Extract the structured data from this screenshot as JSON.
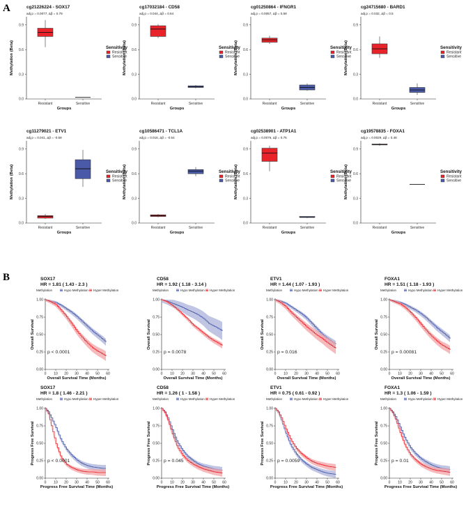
{
  "panel_labels": {
    "a": "A",
    "b": "B"
  },
  "colors": {
    "resistant": "#e8232a",
    "sensitive": "#4a5aa8",
    "hyper": "#e8232a",
    "hypo": "#4a5aa8",
    "hyper_band": "#f4a3a6",
    "hypo_band": "#a9b1d8"
  },
  "boxplot_common": {
    "ylabel": "Methylation (Beta)",
    "xlabel": "Groups",
    "yticks": [
      "0.0",
      "0.3",
      "0.6",
      "0.9"
    ],
    "categories": [
      "Resistant",
      "Sensitive"
    ],
    "legend_title": "Sensitivity",
    "legend_items": [
      "Resistant",
      "Sensitive"
    ]
  },
  "km_common": {
    "legend_prefix": "Methylation",
    "legend_items": [
      "Hypo Methylation",
      "Hyper Methylation"
    ],
    "yticks": [
      "0.00",
      "0.25",
      "0.50",
      "0.75",
      "1.00"
    ],
    "xticks": [
      "0",
      "10",
      "20",
      "30",
      "40",
      "50",
      "60"
    ],
    "os_ylabel": "Overall Survival",
    "os_xlabel": "Overall Survival Time (Months)",
    "pfs_ylabel": "Progress Free Survival",
    "pfs_xlabel": "Progress Free Survival Time (Months)"
  },
  "chart_data": [
    {
      "type": "box",
      "title": "cg21226224 - SOX17",
      "stat": "adj.p = 0.0077, Δβ = 0.79",
      "ylim": [
        0,
        1
      ],
      "boxes": [
        {
          "group": "Resistant",
          "min": 0.63,
          "q1": 0.76,
          "median": 0.81,
          "q3": 0.86,
          "max": 0.96
        },
        {
          "group": "Sensitive",
          "min": 0.02,
          "q1": 0.02,
          "median": 0.02,
          "q3": 0.02,
          "max": 0.02
        }
      ]
    },
    {
      "type": "box",
      "title": "cg17032184 - CD58",
      "stat": "adj.p = 0.044, Δβ = 0.64",
      "ylim": [
        0,
        1
      ],
      "boxes": [
        {
          "group": "Resistant",
          "min": 0.74,
          "q1": 0.76,
          "median": 0.85,
          "q3": 0.89,
          "max": 0.91
        },
        {
          "group": "Sensitive",
          "min": 0.13,
          "q1": 0.14,
          "median": 0.15,
          "q3": 0.16,
          "max": 0.17
        }
      ]
    },
    {
      "type": "box",
      "title": "cg01250864 - IFNGR1",
      "stat": "adj.p = 0.0057, Δβ = 0.59",
      "ylim": [
        0,
        1
      ],
      "boxes": [
        {
          "group": "Resistant",
          "min": 0.67,
          "q1": 0.69,
          "median": 0.72,
          "q3": 0.74,
          "max": 0.77
        },
        {
          "group": "Sensitive",
          "min": 0.1,
          "q1": 0.11,
          "median": 0.14,
          "q3": 0.17,
          "max": 0.19
        }
      ]
    },
    {
      "type": "box",
      "title": "cg24715680 - BARD1",
      "stat": "adj.p = 0.032, Δβ = 0.5",
      "ylim": [
        0,
        1
      ],
      "boxes": [
        {
          "group": "Resistant",
          "min": 0.5,
          "q1": 0.55,
          "median": 0.61,
          "q3": 0.67,
          "max": 0.76
        },
        {
          "group": "Sensitive",
          "min": 0.05,
          "q1": 0.08,
          "median": 0.11,
          "q3": 0.14,
          "max": 0.19
        }
      ]
    },
    {
      "type": "box",
      "title": "cg11279021 - ETV1",
      "stat": "adj.p = 0.041, Δβ = -0.58",
      "ylim": [
        0,
        1
      ],
      "boxes": [
        {
          "group": "Resistant",
          "min": 0.05,
          "q1": 0.06,
          "median": 0.08,
          "q3": 0.09,
          "max": 0.11
        },
        {
          "group": "Sensitive",
          "min": 0.44,
          "q1": 0.54,
          "median": 0.66,
          "q3": 0.77,
          "max": 0.89
        }
      ]
    },
    {
      "type": "box",
      "title": "cg10586471 - TCL1A",
      "stat": "adj.p = 0.016, Δβ = -0.54",
      "ylim": [
        0,
        1
      ],
      "boxes": [
        {
          "group": "Resistant",
          "min": 0.07,
          "q1": 0.08,
          "median": 0.09,
          "q3": 0.1,
          "max": 0.11
        },
        {
          "group": "Sensitive",
          "min": 0.57,
          "q1": 0.6,
          "median": 0.63,
          "q3": 0.65,
          "max": 0.68
        }
      ]
    },
    {
      "type": "box",
      "title": "cg02538901 - ATP1A1",
      "stat": "adj.p = 0.0076, Δβ = 0.75",
      "ylim": [
        0,
        1
      ],
      "boxes": [
        {
          "group": "Resistant",
          "min": 0.63,
          "q1": 0.75,
          "median": 0.85,
          "q3": 0.91,
          "max": 0.94
        },
        {
          "group": "Sensitive",
          "min": 0.06,
          "q1": 0.07,
          "median": 0.07,
          "q3": 0.08,
          "max": 0.08
        }
      ]
    },
    {
      "type": "box",
      "title": "cg19578835 - FOXA1",
      "stat": "adj.p = 0.0029, Δβ = 0.48",
      "ylim": [
        0,
        1
      ],
      "boxes": [
        {
          "group": "Resistant",
          "min": 0.94,
          "q1": 0.95,
          "median": 0.955,
          "q3": 0.96,
          "max": 0.97
        },
        {
          "group": "Sensitive",
          "min": 0.47,
          "q1": 0.47,
          "median": 0.47,
          "q3": 0.47,
          "max": 0.47
        }
      ]
    },
    {
      "type": "km",
      "gene": "SOX17",
      "hr": "HR = 1.81 ( 1.43 - 2.3 )",
      "pvalue": "p < 0.0001",
      "endpoint": "os",
      "xlim": [
        0,
        60
      ],
      "ylim": [
        0,
        1
      ],
      "hypo": {
        "x": [
          0,
          5,
          10,
          15,
          20,
          25,
          30,
          35,
          40,
          45,
          50,
          55,
          58
        ],
        "y": [
          1,
          0.98,
          0.96,
          0.92,
          0.87,
          0.82,
          0.76,
          0.69,
          0.62,
          0.55,
          0.49,
          0.43,
          0.39
        ],
        "band": 0.05
      },
      "hyper": {
        "x": [
          0,
          5,
          10,
          15,
          20,
          25,
          30,
          35,
          40,
          45,
          50,
          55,
          58
        ],
        "y": [
          1,
          0.97,
          0.93,
          0.85,
          0.76,
          0.66,
          0.55,
          0.46,
          0.38,
          0.31,
          0.26,
          0.22,
          0.19
        ],
        "band": 0.07
      }
    },
    {
      "type": "km",
      "gene": "CD58",
      "hr": "HR = 1.92 ( 1.18 - 3.14 )",
      "pvalue": "p = 0.0078",
      "endpoint": "os",
      "xlim": [
        0,
        60
      ],
      "ylim": [
        0,
        1
      ],
      "hypo": {
        "x": [
          0,
          5,
          10,
          15,
          20,
          25,
          30,
          35,
          40,
          45,
          50,
          55,
          58
        ],
        "y": [
          1,
          0.98,
          0.95,
          0.92,
          0.89,
          0.85,
          0.82,
          0.78,
          0.73,
          0.66,
          0.62,
          0.58,
          0.55
        ],
        "band": 0.13
      },
      "hyper": {
        "x": [
          0,
          5,
          10,
          15,
          20,
          25,
          30,
          35,
          40,
          45,
          50,
          55,
          58
        ],
        "y": [
          1,
          0.97,
          0.92,
          0.86,
          0.79,
          0.72,
          0.64,
          0.58,
          0.52,
          0.46,
          0.41,
          0.37,
          0.34
        ],
        "band": 0.04
      }
    },
    {
      "type": "km",
      "gene": "ETV1",
      "hr": "HR = 1.44 ( 1.07 - 1.93 )",
      "pvalue": "p = 0.016",
      "endpoint": "os",
      "xlim": [
        0,
        60
      ],
      "ylim": [
        0,
        1
      ],
      "hypo": {
        "x": [
          0,
          5,
          10,
          15,
          20,
          25,
          30,
          35,
          40,
          45,
          50,
          55,
          58
        ],
        "y": [
          1,
          0.98,
          0.95,
          0.9,
          0.85,
          0.8,
          0.74,
          0.66,
          0.58,
          0.5,
          0.44,
          0.39,
          0.36
        ],
        "band": 0.05
      },
      "hyper": {
        "x": [
          0,
          5,
          10,
          15,
          20,
          25,
          30,
          35,
          40,
          45,
          50,
          55,
          58
        ],
        "y": [
          1,
          0.96,
          0.9,
          0.82,
          0.75,
          0.68,
          0.61,
          0.55,
          0.49,
          0.44,
          0.38,
          0.33,
          0.3
        ],
        "band": 0.08
      }
    },
    {
      "type": "km",
      "gene": "FOXA1",
      "hr": "HR = 1.51 ( 1.18 - 1.93 )",
      "pvalue": "p = 0.00081",
      "endpoint": "os",
      "xlim": [
        0,
        60
      ],
      "ylim": [
        0,
        1
      ],
      "hypo": {
        "x": [
          0,
          5,
          10,
          15,
          20,
          25,
          30,
          35,
          40,
          45,
          50,
          55,
          58
        ],
        "y": [
          1,
          0.98,
          0.96,
          0.93,
          0.89,
          0.85,
          0.8,
          0.74,
          0.67,
          0.6,
          0.54,
          0.48,
          0.44
        ],
        "band": 0.05
      },
      "hyper": {
        "x": [
          0,
          5,
          10,
          15,
          20,
          25,
          30,
          35,
          40,
          45,
          50,
          55,
          58
        ],
        "y": [
          1,
          0.97,
          0.94,
          0.89,
          0.82,
          0.74,
          0.65,
          0.56,
          0.48,
          0.41,
          0.35,
          0.31,
          0.28
        ],
        "band": 0.06
      }
    },
    {
      "type": "km",
      "gene": "SOX17",
      "hr": "HR = 1.8 ( 1.46 - 2.21 )",
      "pvalue": "p < 0.0001",
      "endpoint": "pfs",
      "xlim": [
        0,
        60
      ],
      "ylim": [
        0,
        1
      ],
      "hypo": {
        "x": [
          0,
          3,
          6,
          10,
          15,
          20,
          25,
          30,
          35,
          40,
          45,
          50,
          55,
          58
        ],
        "y": [
          1,
          0.95,
          0.86,
          0.73,
          0.55,
          0.42,
          0.33,
          0.26,
          0.21,
          0.18,
          0.16,
          0.15,
          0.14,
          0.14
        ],
        "band": 0.05
      },
      "hyper": {
        "x": [
          0,
          3,
          6,
          10,
          15,
          20,
          25,
          30,
          35,
          40,
          45,
          50,
          55,
          58
        ],
        "y": [
          1,
          0.92,
          0.74,
          0.5,
          0.3,
          0.2,
          0.15,
          0.12,
          0.1,
          0.09,
          0.09,
          0.08,
          0.08,
          0.08
        ],
        "band": 0.05
      }
    },
    {
      "type": "km",
      "gene": "CD58",
      "hr": "HR = 1.26 ( 1 - 1.58 )",
      "pvalue": "p = 0.045",
      "endpoint": "pfs",
      "xlim": [
        0,
        60
      ],
      "ylim": [
        0,
        1
      ],
      "hypo": {
        "x": [
          0,
          3,
          6,
          10,
          15,
          20,
          25,
          30,
          35,
          40,
          45,
          50,
          55,
          58
        ],
        "y": [
          1,
          0.95,
          0.86,
          0.7,
          0.52,
          0.4,
          0.31,
          0.25,
          0.2,
          0.17,
          0.15,
          0.13,
          0.12,
          0.11
        ],
        "band": 0.05
      },
      "hyper": {
        "x": [
          0,
          3,
          6,
          10,
          15,
          20,
          25,
          30,
          35,
          40,
          45,
          50,
          55,
          58
        ],
        "y": [
          1,
          0.94,
          0.83,
          0.64,
          0.45,
          0.33,
          0.25,
          0.2,
          0.16,
          0.13,
          0.11,
          0.09,
          0.08,
          0.07
        ],
        "band": 0.05
      }
    },
    {
      "type": "km",
      "gene": "ETV1",
      "hr": "HR = 0.75 ( 0.61 - 0.92 )",
      "pvalue": "p = 0.0059",
      "endpoint": "pfs",
      "xlim": [
        0,
        60
      ],
      "ylim": [
        0,
        1
      ],
      "hypo": {
        "x": [
          0,
          3,
          6,
          10,
          15,
          20,
          25,
          30,
          35,
          40,
          45,
          50,
          55,
          58
        ],
        "y": [
          1,
          0.94,
          0.83,
          0.65,
          0.47,
          0.35,
          0.26,
          0.2,
          0.15,
          0.12,
          0.09,
          0.07,
          0.06,
          0.05
        ],
        "band": 0.05
      },
      "hyper": {
        "x": [
          0,
          3,
          6,
          10,
          15,
          20,
          25,
          30,
          35,
          40,
          45,
          50,
          55,
          58
        ],
        "y": [
          1,
          0.95,
          0.86,
          0.71,
          0.55,
          0.43,
          0.35,
          0.29,
          0.24,
          0.21,
          0.19,
          0.17,
          0.16,
          0.15
        ],
        "band": 0.05
      }
    },
    {
      "type": "km",
      "gene": "FOXA1",
      "hr": "HR = 1.3 ( 1.06 - 1.59 )",
      "pvalue": "p = 0.01",
      "endpoint": "pfs",
      "xlim": [
        0,
        60
      ],
      "ylim": [
        0,
        1
      ],
      "hypo": {
        "x": [
          0,
          3,
          6,
          10,
          15,
          20,
          25,
          30,
          35,
          40,
          45,
          50,
          55,
          58
        ],
        "y": [
          1,
          0.95,
          0.88,
          0.74,
          0.57,
          0.44,
          0.35,
          0.28,
          0.23,
          0.19,
          0.16,
          0.14,
          0.13,
          0.12
        ],
        "band": 0.05
      },
      "hyper": {
        "x": [
          0,
          3,
          6,
          10,
          15,
          20,
          25,
          30,
          35,
          40,
          45,
          50,
          55,
          58
        ],
        "y": [
          1,
          0.94,
          0.84,
          0.66,
          0.47,
          0.34,
          0.26,
          0.2,
          0.16,
          0.13,
          0.11,
          0.1,
          0.09,
          0.08
        ],
        "band": 0.05
      }
    }
  ]
}
